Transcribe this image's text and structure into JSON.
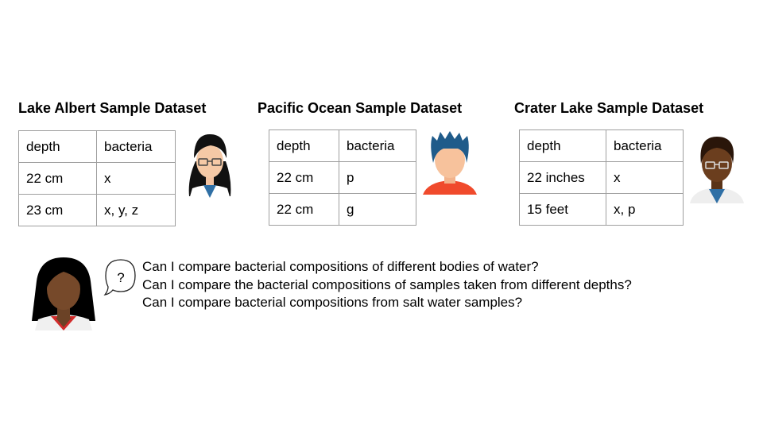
{
  "datasets": [
    {
      "title": "Lake Albert Sample Dataset",
      "columns": [
        "depth",
        "bacteria"
      ],
      "rows": [
        [
          "22 cm",
          "x"
        ],
        [
          "23 cm",
          "x, y, z"
        ]
      ]
    },
    {
      "title": "Pacific Ocean Sample Dataset",
      "columns": [
        "depth",
        "bacteria"
      ],
      "rows": [
        [
          "22 cm",
          "p"
        ],
        [
          "22 cm",
          "g"
        ]
      ]
    },
    {
      "title": "Crater Lake Sample Dataset",
      "columns": [
        "depth",
        "bacteria"
      ],
      "rows": [
        [
          "22 inches",
          "x"
        ],
        [
          "15 feet",
          "x, p"
        ]
      ]
    }
  ],
  "speech_bubble": {
    "symbol": "?"
  },
  "questions": [
    "Can I compare bacterial compositions of different bodies of water?",
    "Can I compare the bacterial compositions of samples taken from different depths?",
    "Can I compare bacterial compositions from salt water samples?"
  ],
  "icons": {
    "researcher_1": "researcher-glasses-woman-icon",
    "researcher_2": "researcher-blue-hair-icon",
    "researcher_3": "researcher-glasses-man-icon",
    "asker": "asking-woman-icon"
  }
}
